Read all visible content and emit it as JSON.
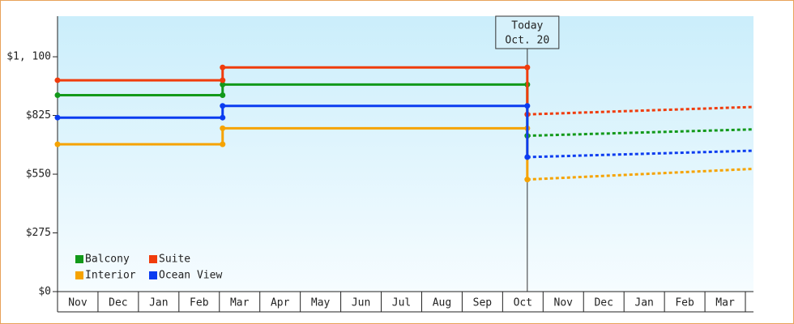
{
  "chart_data": {
    "type": "step-line",
    "xlim": [
      0,
      17.2
    ],
    "xticks": [
      {
        "value": 0.5,
        "label": "Nov"
      },
      {
        "value": 1.5,
        "label": "Dec"
      },
      {
        "value": 2.5,
        "label": "Jan"
      },
      {
        "value": 3.5,
        "label": "Feb"
      },
      {
        "value": 4.5,
        "label": "Mar"
      },
      {
        "value": 5.5,
        "label": "Apr"
      },
      {
        "value": 6.5,
        "label": "May"
      },
      {
        "value": 7.5,
        "label": "Jun"
      },
      {
        "value": 8.5,
        "label": "Jul"
      },
      {
        "value": 9.5,
        "label": "Aug"
      },
      {
        "value": 10.5,
        "label": "Sep"
      },
      {
        "value": 11.5,
        "label": "Oct"
      },
      {
        "value": 12.5,
        "label": "Nov"
      },
      {
        "value": 13.5,
        "label": "Dec"
      },
      {
        "value": 14.5,
        "label": "Jan"
      },
      {
        "value": 15.5,
        "label": "Feb"
      },
      {
        "value": 16.5,
        "label": "Mar"
      }
    ],
    "ylim": [
      0,
      1290
    ],
    "yticks": [
      {
        "value": 0,
        "label": "$0"
      },
      {
        "value": 275,
        "label": "$275"
      },
      {
        "value": 550,
        "label": "$550"
      },
      {
        "value": 825,
        "label": "$825"
      },
      {
        "value": 1100,
        "label": "$1, 100"
      }
    ],
    "today": {
      "x": 11.61,
      "label": [
        "Today",
        "Oct. 20"
      ]
    },
    "series": [
      {
        "name": "Balcony",
        "color": "#12991a",
        "x": [
          0,
          4.08,
          4.08,
          11.61,
          11.61
        ],
        "values": [
          920,
          920,
          970,
          970,
          730
        ],
        "forecast_x": [
          11.61,
          17.2
        ],
        "forecast_values": [
          730,
          760
        ]
      },
      {
        "name": "Suite",
        "color": "#f03c0c",
        "x": [
          0,
          4.08,
          4.08,
          11.61,
          11.61
        ],
        "values": [
          990,
          990,
          1050,
          1050,
          830
        ],
        "forecast_x": [
          11.61,
          17.2
        ],
        "forecast_values": [
          830,
          865
        ]
      },
      {
        "name": "Interior",
        "color": "#f6a300",
        "x": [
          0,
          4.08,
          4.08,
          11.61,
          11.61
        ],
        "values": [
          690,
          690,
          765,
          765,
          525
        ],
        "forecast_x": [
          11.61,
          17.2
        ],
        "forecast_values": [
          525,
          575
        ]
      },
      {
        "name": "Ocean View",
        "color": "#0b3cf0",
        "x": [
          0,
          4.08,
          4.08,
          11.61,
          11.61
        ],
        "values": [
          815,
          815,
          870,
          870,
          630
        ],
        "forecast_x": [
          11.61,
          17.2
        ],
        "forecast_values": [
          630,
          660
        ]
      }
    ]
  }
}
